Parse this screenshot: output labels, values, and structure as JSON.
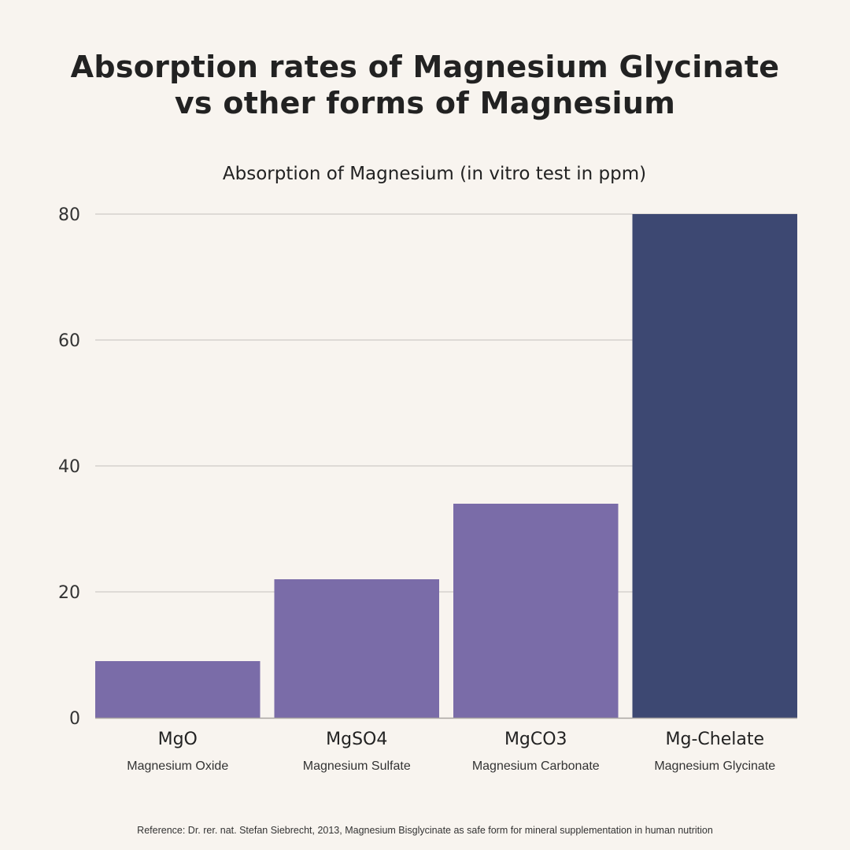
{
  "chart_data": {
    "type": "bar",
    "title": [
      "Absorption rates of Magnesium Glycinate",
      "vs other forms of Magnesium"
    ],
    "subtitle": "Absorption of Magnesium (in vitro test in ppm)",
    "categories": [
      "MgO",
      "MgSO4",
      "MgCO3",
      "Mg-Chelate"
    ],
    "category_sublabels": [
      "Magnesium Oxide",
      "Magnesium Sulfate",
      "Magnesium Carbonate",
      "Magnesium Glycinate"
    ],
    "values": [
      9,
      22,
      34,
      80
    ],
    "colors": [
      "#7a6ca8",
      "#7a6ca8",
      "#7a6ca8",
      "#3d4872"
    ],
    "ylim": [
      0,
      80
    ],
    "yticks": [
      0,
      20,
      40,
      60,
      80
    ],
    "grid": true,
    "xlabel": "",
    "ylabel": ""
  },
  "reference": "Reference: Dr. rer. nat. Stefan Siebrecht, 2013, Magnesium Bisglycinate as safe form for mineral supplementation in human nutrition"
}
